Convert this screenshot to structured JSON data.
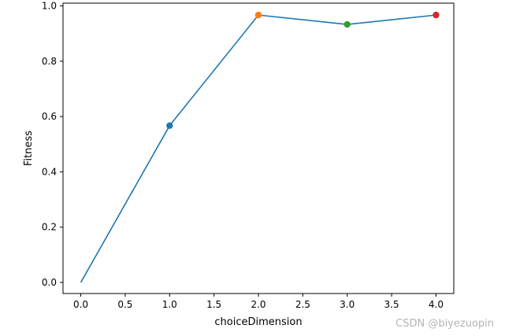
{
  "chart_data": {
    "type": "line",
    "title": "",
    "xlabel": "choiceDimension",
    "ylabel": "Fitness",
    "xlim": [
      -0.2,
      4.2
    ],
    "ylim": [
      -0.04,
      1.01
    ],
    "xticks": [
      "0.0",
      "0.5",
      "1.0",
      "1.5",
      "2.0",
      "2.5",
      "3.0",
      "3.5",
      "4.0"
    ],
    "yticks": [
      "0.0",
      "0.2",
      "0.4",
      "0.6",
      "0.8",
      "1.0"
    ],
    "grid": false,
    "line": {
      "x": [
        0,
        1,
        2,
        3,
        4
      ],
      "y": [
        0.0,
        0.567,
        0.967,
        0.933,
        0.967
      ],
      "color": "#1f77b4"
    },
    "markers": [
      {
        "x": 1,
        "y": 0.567,
        "color": "#1f77b4"
      },
      {
        "x": 2,
        "y": 0.967,
        "color": "#ff7f0e"
      },
      {
        "x": 3,
        "y": 0.933,
        "color": "#2ca02c"
      },
      {
        "x": 4,
        "y": 0.967,
        "color": "#d62728"
      }
    ]
  },
  "watermark": "CSDN @biyezuopin"
}
